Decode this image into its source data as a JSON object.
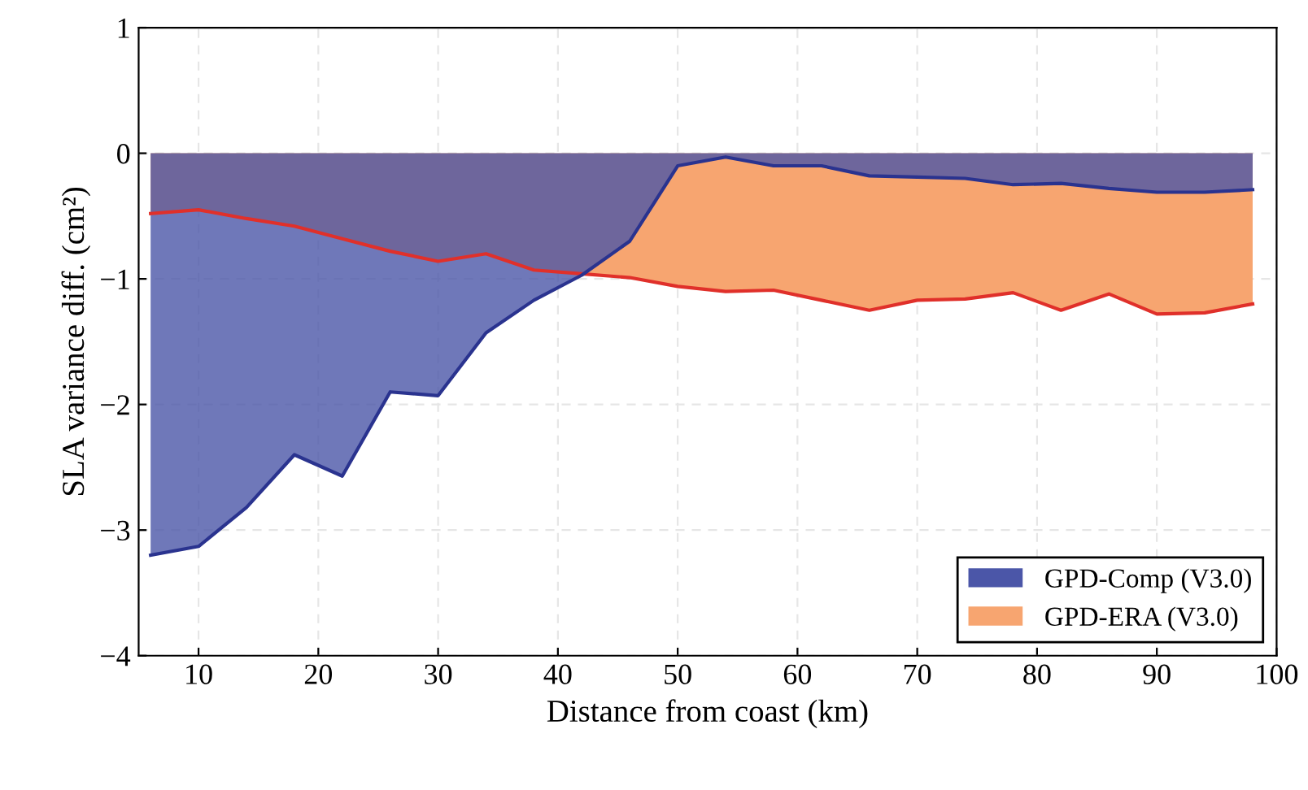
{
  "chart_data": {
    "type": "area",
    "xlabel": "Distance from coast (km)",
    "ylabel": "SLA variance diff. (cm²)",
    "series": [
      {
        "name": "GPD-ERA (V3.0)",
        "color": "#f7a570",
        "x": [
          6,
          10,
          14,
          18,
          22,
          26,
          30,
          34,
          38,
          42,
          46,
          50,
          54,
          58,
          62,
          66,
          70,
          74,
          78,
          82,
          86,
          90,
          94,
          98
        ],
        "values": [
          -0.48,
          -0.45,
          -0.52,
          -0.58,
          -0.68,
          -0.78,
          -0.86,
          -0.8,
          -0.93,
          -0.96,
          -0.99,
          -1.06,
          -1.1,
          -1.09,
          -1.17,
          -1.25,
          -1.17,
          -1.16,
          -1.11,
          -1.25,
          -1.12,
          -1.28,
          -1.27,
          -1.2
        ]
      },
      {
        "name": "GPD-Comp (V3.0)",
        "color": "#4b56a8",
        "x": [
          6,
          10,
          14,
          18,
          22,
          26,
          30,
          34,
          38,
          42,
          46,
          50,
          54,
          58,
          62,
          66,
          70,
          74,
          78,
          82,
          86,
          90,
          94,
          98
        ],
        "values": [
          -3.2,
          -3.13,
          -2.82,
          -2.4,
          -2.57,
          -1.9,
          -1.93,
          -1.43,
          -1.17,
          -0.97,
          -0.7,
          -0.1,
          -0.03,
          -0.1,
          -0.1,
          -0.18,
          -0.19,
          -0.2,
          -0.25,
          -0.24,
          -0.28,
          -0.31,
          -0.31,
          -0.29
        ]
      }
    ],
    "xlim": [
      5,
      100
    ],
    "xticks": [
      10,
      20,
      30,
      40,
      50,
      60,
      70,
      80,
      90,
      100
    ],
    "ylim": [
      -4,
      1
    ],
    "yticks": [
      -4,
      -3,
      -2,
      -1,
      0,
      1
    ],
    "grid": true,
    "legend": "bottom right"
  }
}
